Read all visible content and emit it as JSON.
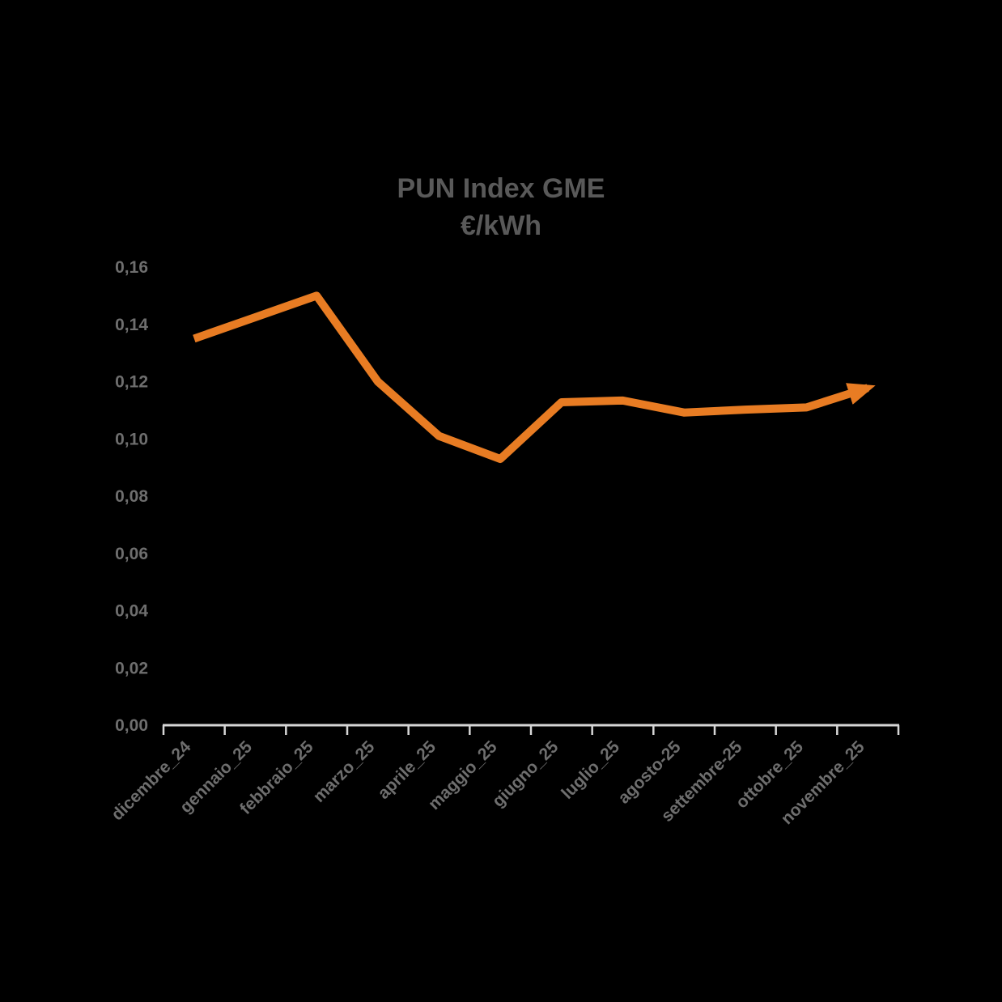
{
  "chart_data": {
    "type": "line",
    "title": "PUN Index GME",
    "subtitle": "€/kWh",
    "categories": [
      "dicembre_24",
      "gennaio_25",
      "febbraio_25",
      "marzo_25",
      "aprile_25",
      "maggio_25",
      "giugno_25",
      "luglio_25",
      "agosto-25",
      "settembre-25",
      "ottobre_25",
      "novembre_25"
    ],
    "series": [
      {
        "name": "PUN Index GME (€/kWh)",
        "values": [
          0.135,
          0.1425,
          0.15,
          0.12,
          0.101,
          0.093,
          0.1128,
          0.1134,
          0.1092,
          0.1102,
          0.111,
          0.1178
        ]
      }
    ],
    "y_axis": {
      "min": 0,
      "max": 0.16,
      "step": 0.02,
      "tick_labels": [
        "0,00",
        "0,02",
        "0,04",
        "0,06",
        "0,08",
        "0,10",
        "0,12",
        "0,14",
        "0,16"
      ]
    },
    "x_axis": {
      "label_rotation_deg": -45,
      "boundary_ticks": 13
    },
    "grid": false,
    "legend": "none",
    "arrow_end": true,
    "colors": {
      "line": "#E87C23",
      "axis": "#D6D6D6",
      "labels": "#6E6E6E",
      "title": "#595959",
      "background": "#000000"
    }
  }
}
